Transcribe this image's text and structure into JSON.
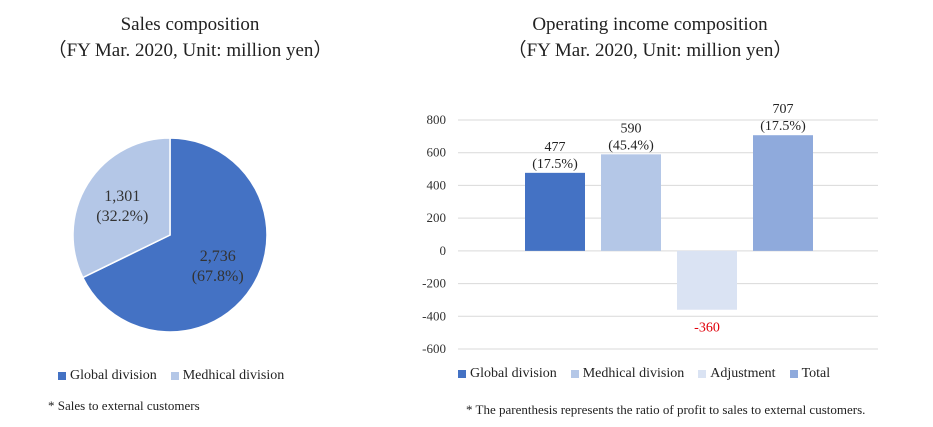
{
  "sales_chart": {
    "title_line1": "Sales composition",
    "title_line2": "（FY Mar. 2020, Unit: million yen）",
    "footnote": "* Sales to external customers",
    "colors": {
      "global": "#4472c4",
      "medical": "#b4c7e7"
    },
    "chart_data": {
      "type": "pie",
      "title": "Sales composition",
      "subtitle": "（FY Mar. 2020, Unit: million yen）",
      "slices": [
        {
          "name": "Global division",
          "value": 2736,
          "label": "2,736",
          "percent_label": "(67.8%)",
          "color": "#4472c4"
        },
        {
          "name": "Medhical division",
          "value": 1301,
          "label": "1,301",
          "percent_label": "(32.2%)",
          "color": "#b4c7e7"
        }
      ],
      "legend": [
        "Global division",
        "Medhical division"
      ],
      "legend_position": "bottom"
    }
  },
  "income_chart": {
    "title_line1": "Operating income composition",
    "title_line2": "（FY Mar. 2020, Unit: million yen）",
    "footnote": "* The parenthesis represents the ratio of profit to sales to external customers.",
    "chart_data": {
      "type": "bar",
      "title": "Operating income composition",
      "subtitle": "（FY Mar. 2020, Unit: million yen）",
      "categories": [
        "Global division",
        "Medhical division",
        "Adjustment",
        "Total"
      ],
      "values": [
        477,
        590,
        -360,
        707
      ],
      "value_labels": [
        "477",
        "590",
        "-360",
        "707"
      ],
      "percent_labels": [
        "(17.5%)",
        "(45.4%)",
        "",
        "(17.5%)"
      ],
      "colors": [
        "#4472c4",
        "#b4c7e7",
        "#dae3f3",
        "#8faadc"
      ],
      "negative_label_color": "#e0000a",
      "ylim": [
        -600,
        800
      ],
      "yticks": [
        800,
        600,
        400,
        200,
        0,
        -200,
        -400,
        -600
      ],
      "ytick_labels": [
        "800",
        "600",
        "400",
        "200",
        "0",
        "-200",
        "-400",
        "-600"
      ],
      "grid": true,
      "legend_position": "bottom"
    }
  }
}
